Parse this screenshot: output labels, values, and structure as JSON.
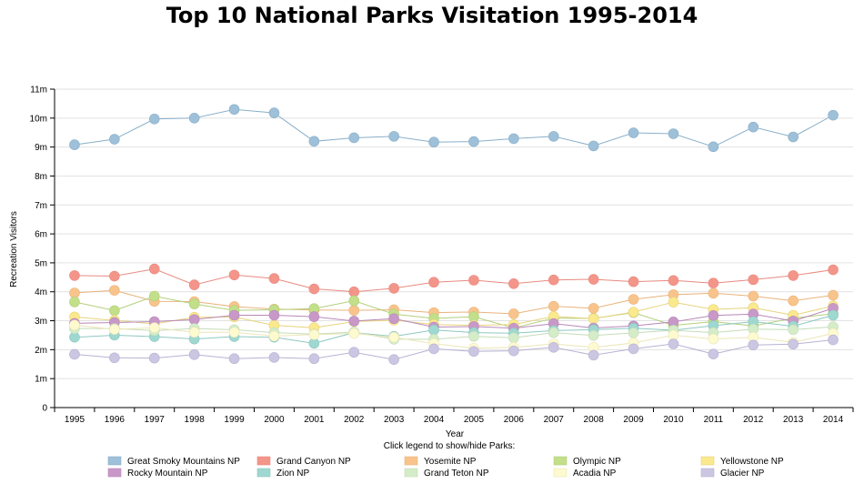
{
  "chart_data": {
    "type": "line",
    "title": "Top 10 National Parks Visitation 1995-2014",
    "xlabel": "Year",
    "ylabel": "Recreation Visitors",
    "legend_hint": "Click legend to show/hide Parks:",
    "x": [
      1995,
      1996,
      1997,
      1998,
      1999,
      2000,
      2001,
      2002,
      2003,
      2004,
      2005,
      2006,
      2007,
      2008,
      2009,
      2010,
      2011,
      2012,
      2013,
      2014
    ],
    "ylim": [
      0,
      11
    ],
    "yticks": [
      0,
      1,
      2,
      3,
      4,
      5,
      6,
      7,
      8,
      9,
      10,
      11
    ],
    "ytick_labels": [
      "0",
      "1m",
      "2m",
      "3m",
      "4m",
      "5m",
      "6m",
      "7m",
      "8m",
      "9m",
      "10m",
      "11m"
    ],
    "grid": true,
    "series": [
      {
        "name": "Great Smoky Mountains NP",
        "color": "#9ec0d8",
        "stroke": "#8aafc9",
        "values": [
          9.08,
          9.27,
          9.97,
          10.0,
          10.3,
          10.18,
          9.2,
          9.32,
          9.37,
          9.17,
          9.19,
          9.29,
          9.37,
          9.04,
          9.49,
          9.46,
          9.01,
          9.69,
          9.35,
          10.1
        ]
      },
      {
        "name": "Grand Canyon NP",
        "color": "#f4958a",
        "stroke": "#e88a80",
        "values": [
          4.56,
          4.54,
          4.79,
          4.24,
          4.58,
          4.46,
          4.1,
          4.0,
          4.12,
          4.33,
          4.4,
          4.28,
          4.41,
          4.43,
          4.35,
          4.39,
          4.3,
          4.42,
          4.56,
          4.76
        ]
      },
      {
        "name": "Yosemite NP",
        "color": "#f9c48c",
        "stroke": "#e8b47c",
        "values": [
          3.96,
          4.05,
          3.67,
          3.66,
          3.49,
          3.4,
          3.37,
          3.36,
          3.38,
          3.28,
          3.3,
          3.24,
          3.5,
          3.43,
          3.74,
          3.9,
          3.95,
          3.85,
          3.69,
          3.88
        ]
      },
      {
        "name": "Olympic NP",
        "color": "#c2df8a",
        "stroke": "#b3cf7c",
        "values": [
          3.65,
          3.35,
          3.85,
          3.58,
          3.36,
          3.38,
          3.42,
          3.69,
          3.23,
          3.08,
          3.14,
          2.75,
          3.09,
          3.08,
          3.28,
          2.84,
          2.97,
          2.82,
          3.09,
          3.24
        ]
      },
      {
        "name": "Yellowstone NP",
        "color": "#fbe98e",
        "stroke": "#e6d47c",
        "values": [
          3.13,
          3.01,
          2.89,
          3.12,
          3.13,
          2.84,
          2.76,
          2.97,
          3.02,
          2.87,
          2.84,
          2.87,
          3.15,
          3.07,
          3.3,
          3.64,
          3.39,
          3.45,
          3.19,
          3.51
        ]
      },
      {
        "name": "Rocky Mountain NP",
        "color": "#c899c8",
        "stroke": "#b888b8",
        "values": [
          2.91,
          2.94,
          2.97,
          3.04,
          3.19,
          3.19,
          3.14,
          2.99,
          3.07,
          2.78,
          2.8,
          2.74,
          2.9,
          2.75,
          2.82,
          2.96,
          3.18,
          3.23,
          2.99,
          3.43
        ]
      },
      {
        "name": "Zion NP",
        "color": "#9fd8d0",
        "stroke": "#8ec8c0",
        "values": [
          2.43,
          2.5,
          2.45,
          2.37,
          2.45,
          2.43,
          2.22,
          2.59,
          2.46,
          2.68,
          2.59,
          2.57,
          2.66,
          2.69,
          2.74,
          2.67,
          2.83,
          2.97,
          2.81,
          3.19
        ]
      },
      {
        "name": "Grand Teton NP",
        "color": "#d5ecc8",
        "stroke": "#c5dcb8",
        "values": [
          2.73,
          2.73,
          2.66,
          2.73,
          2.69,
          2.59,
          2.54,
          2.61,
          2.36,
          2.36,
          2.46,
          2.41,
          2.59,
          2.49,
          2.58,
          2.67,
          2.59,
          2.71,
          2.69,
          2.79
        ]
      },
      {
        "name": "Acadia NP",
        "color": "#fefad0",
        "stroke": "#ece6b8",
        "values": [
          2.85,
          2.7,
          2.76,
          2.6,
          2.6,
          2.47,
          2.52,
          2.56,
          2.43,
          2.21,
          2.05,
          2.08,
          2.2,
          2.08,
          2.23,
          2.5,
          2.37,
          2.43,
          2.25,
          2.56
        ]
      },
      {
        "name": "Glacier NP",
        "color": "#cbc6e2",
        "stroke": "#b8b2d2",
        "values": [
          1.84,
          1.72,
          1.71,
          1.83,
          1.69,
          1.73,
          1.69,
          1.91,
          1.66,
          2.03,
          1.94,
          1.96,
          2.08,
          1.81,
          2.03,
          2.2,
          1.85,
          2.16,
          2.19,
          2.34
        ]
      }
    ]
  }
}
